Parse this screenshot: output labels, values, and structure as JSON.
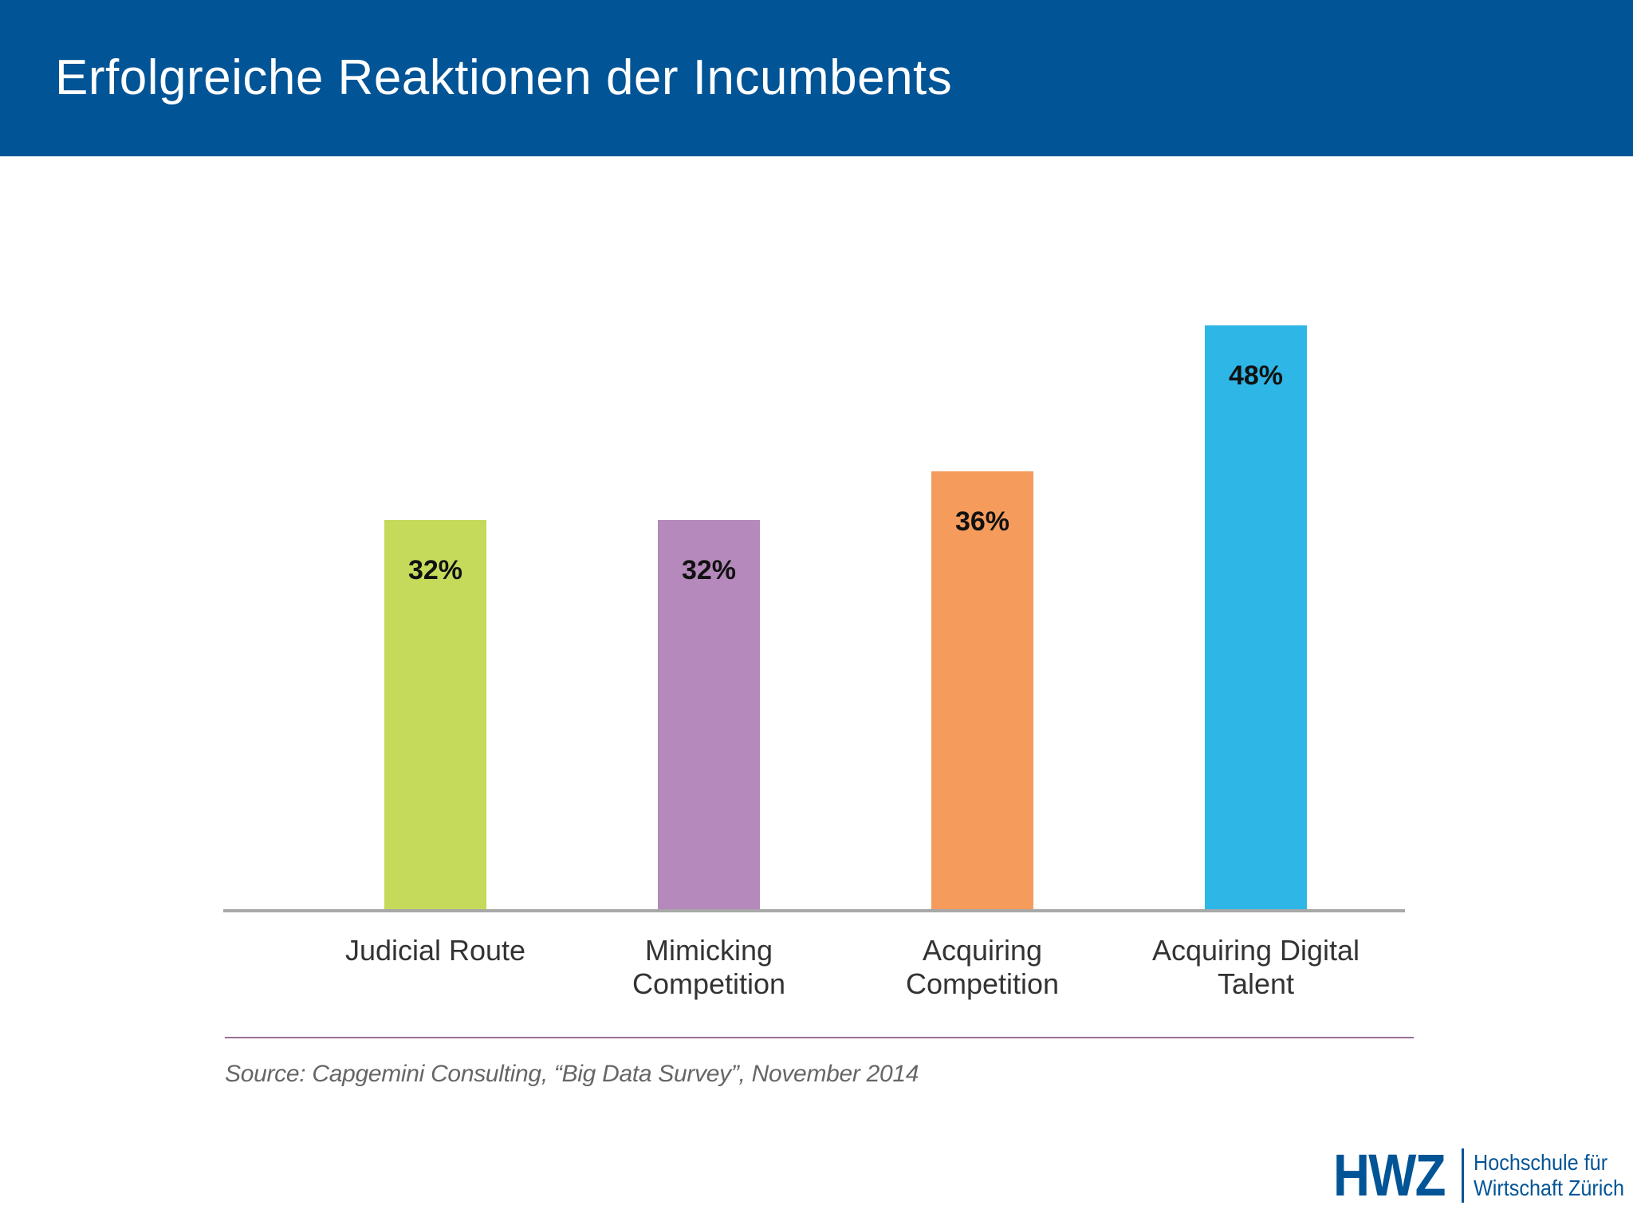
{
  "header": {
    "title": "Erfolgreiche Reaktionen der Incumbents"
  },
  "chart_data": {
    "type": "bar",
    "categories": [
      [
        "Judicial Route"
      ],
      [
        "Mimicking",
        "Competition"
      ],
      [
        "Acquiring",
        "Competition"
      ],
      [
        "Acquiring Digital",
        "Talent"
      ]
    ],
    "values": [
      32,
      32,
      36,
      48
    ],
    "value_labels": [
      "32%",
      "32%",
      "36%",
      "48%"
    ],
    "colors": [
      "#c5d95b",
      "#b589bb",
      "#f59c5d",
      "#2eb6e6"
    ],
    "title": "",
    "xlabel": "",
    "ylabel": "",
    "ylim": [
      0,
      50
    ],
    "grid": false
  },
  "source": "Source: Capgemini Consulting, “Big Data Survey”, November 2014",
  "logo": {
    "name": "HWZ",
    "line1": "Hochschule für",
    "line2": "Wirtschaft Zürich"
  }
}
